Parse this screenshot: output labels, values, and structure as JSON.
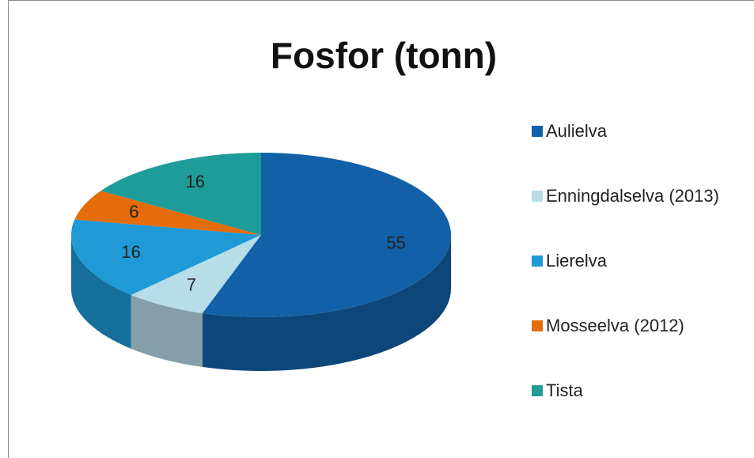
{
  "chart_data": {
    "type": "pie3d",
    "title": "Fosfor (tonn)",
    "categories": [
      "Aulielva",
      "Enningdalselva (2013)",
      "Lierelva",
      "Mosseelva (2012)",
      "Tista"
    ],
    "values": [
      55,
      7,
      16,
      6,
      16
    ],
    "colors": [
      "#1261a8",
      "#b7dde8",
      "#1f9ad6",
      "#e46c0a",
      "#1d9c9a"
    ],
    "legend": "right"
  }
}
